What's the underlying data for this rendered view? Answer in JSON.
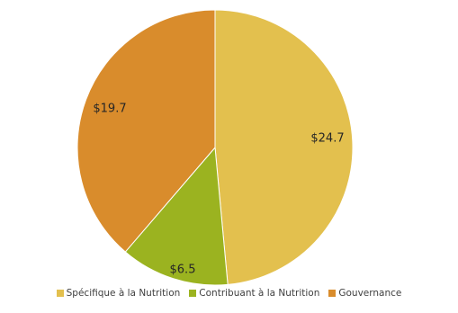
{
  "chart_data": {
    "type": "pie",
    "title": "",
    "categories": [
      "Spécifique à la Nutrition",
      "Contribuant à la Nutrition",
      "Gouvernance"
    ],
    "values": [
      24.7,
      6.5,
      19.7
    ],
    "labels": [
      "$24.7",
      "$6.5",
      "$19.7"
    ],
    "colors": [
      "#e3c04e",
      "#9bb320",
      "#d98c2c"
    ],
    "legend_position": "bottom",
    "start_angle": "12 o'clock, clockwise"
  }
}
